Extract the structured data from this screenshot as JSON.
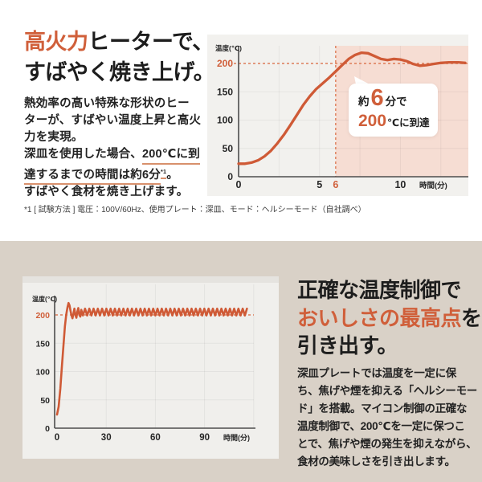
{
  "colors": {
    "accent": "#d05f3a",
    "curve": "#cf5a36",
    "dashed": "#dd7c58",
    "shade": "#f6ddd3",
    "panel": "#f2f1ee",
    "card": "#f0efec",
    "cardband": "#e5e3df",
    "beige": "#d9d1c7",
    "underline": "#d8906c",
    "axis": "#4d4d4d",
    "tick": "#262626",
    "grid": "rgba(0,0,0,0.05)"
  },
  "top": {
    "heading_lines": [
      [
        {
          "t": "高火力",
          "cls": "accent"
        },
        {
          "t": "ヒーターで、"
        }
      ],
      [
        {
          "t": "すばやく焼き上げ。"
        }
      ]
    ],
    "body_lines": [
      [
        {
          "t": "熱効率の高い特殊な形状のヒー"
        }
      ],
      [
        {
          "t": "ターが、すばやい温度上昇と高火"
        }
      ],
      [
        {
          "t": "力を実現。"
        }
      ],
      [
        {
          "t": "深皿を使用した場合、"
        },
        {
          "t": "200℃に到",
          "cls": "u"
        }
      ],
      [
        {
          "t": "達するまでの時間は約6分",
          "cls": "u"
        },
        {
          "t": "*1",
          "cls": "u sup"
        },
        {
          "t": "。"
        }
      ],
      [
        {
          "t": "すばやく食材を焼き上げます。"
        }
      ]
    ],
    "footnote": "*1 [ 試験方法 ] 電圧：100V/60Hz、使用プレート：深皿、モード：ヘルシーモード（自社調べ）"
  },
  "bottom": {
    "heading_lines": [
      [
        {
          "t": "正確な温度制御で"
        }
      ],
      [
        {
          "t": "おいしさの最高点",
          "cls": "accent"
        },
        {
          "t": "を"
        }
      ],
      [
        {
          "t": "引き出す。"
        }
      ]
    ],
    "body_lines": [
      [
        {
          "t": "深皿プレートでは温度を一定に保"
        }
      ],
      [
        {
          "t": "ち、焦げや煙を抑える「ヘルシーモー"
        }
      ],
      [
        {
          "t": "ド」を搭載。マイコン制御の正確な"
        }
      ],
      [
        {
          "t": "温度制御で、200℃を一定に保つこ"
        }
      ],
      [
        {
          "t": "とで、焦げや煙の発生を抑えながら、"
        }
      ],
      [
        {
          "t": "食材の美味しさを引き出します。"
        }
      ]
    ]
  },
  "chart_data": [
    {
      "type": "line",
      "ylabel": "温度(℃)",
      "xlabel": "時間(分)",
      "ylim": [
        0,
        240
      ],
      "xlim": [
        0,
        14.2
      ],
      "y_ticks": [
        0,
        50,
        100,
        150,
        200
      ],
      "x_ticks": [
        0,
        5,
        6,
        10
      ],
      "accent_ticks": {
        "y": 200,
        "x": 6
      },
      "ref_line_y": 200,
      "ref_line_x": 6,
      "shaded_region": {
        "from_x": 6,
        "to_x": 14.2
      },
      "grid": "subtle",
      "legend": "none",
      "callout": {
        "line1": [
          {
            "t": "約"
          },
          {
            "t": "6",
            "cls": "big"
          },
          {
            "t": "分で"
          }
        ],
        "line2": [
          {
            "t": "200",
            "cls": "mid"
          },
          {
            "t": "℃に到達"
          }
        ]
      },
      "series": [
        {
          "name": "深皿プレート温度",
          "points": [
            [
              0,
              23
            ],
            [
              0.4,
              23
            ],
            [
              0.8,
              25
            ],
            [
              1.2,
              29
            ],
            [
              1.6,
              36
            ],
            [
              2,
              46
            ],
            [
              2.4,
              59
            ],
            [
              2.8,
              74
            ],
            [
              3.2,
              91
            ],
            [
              3.6,
              109
            ],
            [
              4,
              127
            ],
            [
              4.4,
              142
            ],
            [
              4.8,
              155
            ],
            [
              5.2,
              165
            ],
            [
              5.6,
              175
            ],
            [
              6,
              186
            ],
            [
              6.4,
              197
            ],
            [
              6.8,
              208
            ],
            [
              7.2,
              215
            ],
            [
              7.6,
              219
            ],
            [
              8,
              218
            ],
            [
              8.4,
              213
            ],
            [
              8.8,
              208
            ],
            [
              9.2,
              206
            ],
            [
              9.6,
              208
            ],
            [
              10,
              207
            ],
            [
              10.4,
              204
            ],
            [
              10.8,
              199
            ],
            [
              11.2,
              196
            ],
            [
              11.6,
              197
            ],
            [
              12,
              199
            ],
            [
              12.5,
              201
            ],
            [
              13,
              202
            ],
            [
              13.6,
              202
            ],
            [
              14,
              201
            ]
          ]
        }
      ]
    },
    {
      "type": "line",
      "ylabel": "温度(℃)",
      "xlabel": "時間(分)",
      "ylim": [
        0,
        240
      ],
      "xlim": [
        0,
        120
      ],
      "y_ticks": [
        0,
        50,
        100,
        150,
        200
      ],
      "x_ticks": [
        0,
        30,
        60,
        90
      ],
      "accent_ticks": {
        "y": 200
      },
      "ref_line_y": 200,
      "grid": "subtle",
      "legend": "none",
      "series": [
        {
          "name": "ヘルシーモード温度（200℃一定保持）",
          "points": [
            [
              0,
              24
            ],
            [
              1,
              38
            ],
            [
              2,
              70
            ],
            [
              3,
              110
            ],
            [
              4,
              150
            ],
            [
              4.8,
              180
            ],
            [
              5.6,
              200
            ],
            [
              6.4,
              214
            ],
            [
              7,
              221
            ],
            [
              7.6,
              217
            ],
            [
              8.2,
              208
            ],
            [
              8.8,
              199
            ],
            [
              9.4,
              194
            ],
            [
              10,
              202
            ],
            [
              10.6,
              211
            ],
            [
              11.2,
              200
            ],
            [
              11.8,
              195
            ],
            [
              12.4,
              206
            ],
            [
              13,
              212
            ],
            [
              13.6,
              200
            ],
            [
              14.2,
              197
            ],
            [
              14.8,
              209
            ]
          ],
          "oscillation": {
            "from": 15.8,
            "to": 117,
            "low": 199,
            "high": 211,
            "step": 1.3
          }
        }
      ]
    }
  ]
}
